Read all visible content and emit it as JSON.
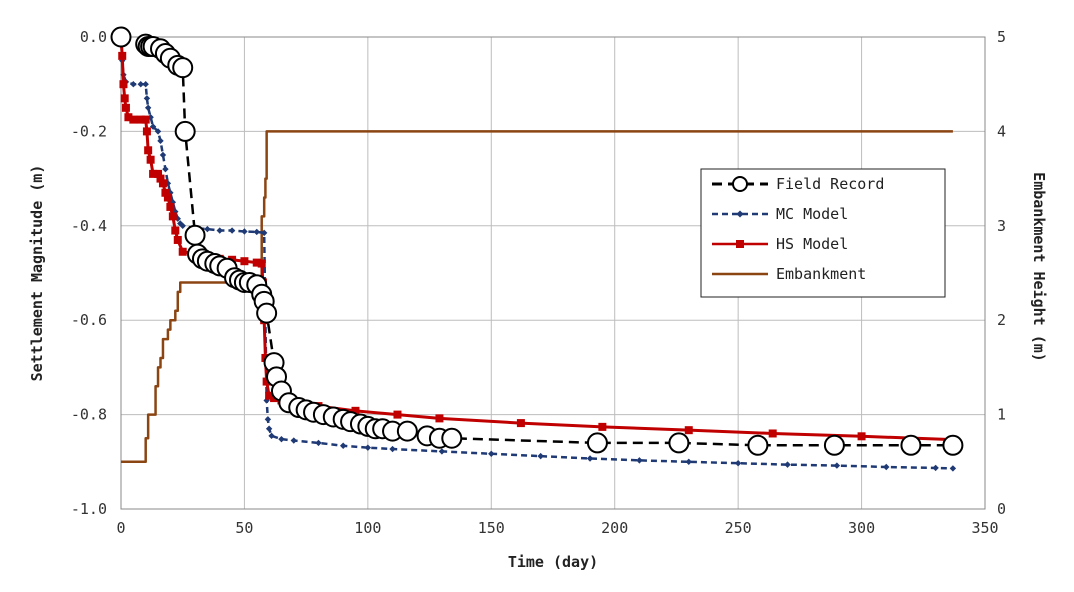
{
  "chart_data": {
    "type": "line",
    "xlabel": "Time (day)",
    "ylabel": "Settlement Magnitude (m)",
    "y2label": "Embankment Height (m)",
    "xlim": [
      0,
      350
    ],
    "ylim": [
      -1.0,
      0.0
    ],
    "y2lim": [
      0,
      5
    ],
    "x_ticks": [
      "0",
      "50",
      "100",
      "150",
      "200",
      "250",
      "300",
      "350"
    ],
    "y_ticks": [
      "0.0",
      "-0.2",
      "-0.4",
      "-0.6",
      "-0.8",
      "-1.0"
    ],
    "y2_ticks": [
      "5",
      "4",
      "3",
      "2",
      "1",
      "0"
    ],
    "grid": true,
    "legend_position": "right",
    "series": [
      {
        "name": "Field Record",
        "axis": "left",
        "color": "#000000",
        "style": "dashed",
        "marker": "open-circle",
        "points": [
          [
            0,
            0.0
          ],
          [
            10,
            -0.015
          ],
          [
            11,
            -0.02
          ],
          [
            12,
            -0.02
          ],
          [
            13,
            -0.02
          ],
          [
            16,
            -0.025
          ],
          [
            18,
            -0.035
          ],
          [
            20,
            -0.045
          ],
          [
            23,
            -0.06
          ],
          [
            25,
            -0.065
          ],
          [
            26,
            -0.2
          ],
          [
            30,
            -0.42
          ],
          [
            31,
            -0.46
          ],
          [
            33,
            -0.47
          ],
          [
            35,
            -0.475
          ],
          [
            38,
            -0.48
          ],
          [
            40,
            -0.485
          ],
          [
            43,
            -0.49
          ],
          [
            46,
            -0.51
          ],
          [
            48,
            -0.515
          ],
          [
            50,
            -0.52
          ],
          [
            52,
            -0.52
          ],
          [
            55,
            -0.525
          ],
          [
            57,
            -0.545
          ],
          [
            58,
            -0.56
          ],
          [
            59,
            -0.585
          ],
          [
            62,
            -0.69
          ],
          [
            63,
            -0.72
          ],
          [
            65,
            -0.75
          ],
          [
            68,
            -0.775
          ],
          [
            72,
            -0.785
          ],
          [
            75,
            -0.79
          ],
          [
            78,
            -0.795
          ],
          [
            82,
            -0.8
          ],
          [
            86,
            -0.805
          ],
          [
            90,
            -0.81
          ],
          [
            93,
            -0.815
          ],
          [
            97,
            -0.82
          ],
          [
            100,
            -0.825
          ],
          [
            103,
            -0.83
          ],
          [
            106,
            -0.83
          ],
          [
            110,
            -0.835
          ],
          [
            116,
            -0.835
          ],
          [
            124,
            -0.845
          ],
          [
            129,
            -0.85
          ],
          [
            134,
            -0.85
          ],
          [
            193,
            -0.86
          ],
          [
            226,
            -0.86
          ],
          [
            258,
            -0.865
          ],
          [
            289,
            -0.865
          ],
          [
            320,
            -0.865
          ],
          [
            337,
            -0.865
          ]
        ]
      },
      {
        "name": "MC Model",
        "axis": "left",
        "color": "#1f3a75",
        "style": "dashed",
        "marker": "small-diamond",
        "points": [
          [
            0,
            0.0
          ],
          [
            0.5,
            -0.05
          ],
          [
            1,
            -0.08
          ],
          [
            2,
            -0.095
          ],
          [
            5,
            -0.1
          ],
          [
            8,
            -0.1
          ],
          [
            10,
            -0.1
          ],
          [
            10.5,
            -0.13
          ],
          [
            11,
            -0.15
          ],
          [
            12,
            -0.17
          ],
          [
            13,
            -0.19
          ],
          [
            15,
            -0.2
          ],
          [
            16,
            -0.22
          ],
          [
            17,
            -0.25
          ],
          [
            18,
            -0.28
          ],
          [
            19,
            -0.31
          ],
          [
            20,
            -0.33
          ],
          [
            21,
            -0.35
          ],
          [
            22,
            -0.37
          ],
          [
            23,
            -0.385
          ],
          [
            24,
            -0.395
          ],
          [
            25,
            -0.4
          ],
          [
            30,
            -0.405
          ],
          [
            35,
            -0.407
          ],
          [
            40,
            -0.41
          ],
          [
            45,
            -0.41
          ],
          [
            50,
            -0.412
          ],
          [
            55,
            -0.413
          ],
          [
            58,
            -0.415
          ],
          [
            58.5,
            -0.6
          ],
          [
            59,
            -0.77
          ],
          [
            59.5,
            -0.81
          ],
          [
            60,
            -0.83
          ],
          [
            61,
            -0.845
          ],
          [
            65,
            -0.852
          ],
          [
            70,
            -0.855
          ],
          [
            80,
            -0.86
          ],
          [
            90,
            -0.866
          ],
          [
            100,
            -0.87
          ],
          [
            110,
            -0.873
          ],
          [
            130,
            -0.878
          ],
          [
            150,
            -0.883
          ],
          [
            170,
            -0.888
          ],
          [
            190,
            -0.893
          ],
          [
            210,
            -0.897
          ],
          [
            230,
            -0.9
          ],
          [
            250,
            -0.903
          ],
          [
            270,
            -0.906
          ],
          [
            290,
            -0.908
          ],
          [
            310,
            -0.911
          ],
          [
            330,
            -0.913
          ],
          [
            337,
            -0.914
          ]
        ]
      },
      {
        "name": "HS Model",
        "axis": "left",
        "color": "#c00000",
        "style": "solid",
        "marker": "square",
        "points": [
          [
            0,
            0.0
          ],
          [
            0.5,
            -0.04
          ],
          [
            1,
            -0.1
          ],
          [
            1.5,
            -0.13
          ],
          [
            2,
            -0.15
          ],
          [
            3,
            -0.17
          ],
          [
            5,
            -0.175
          ],
          [
            8,
            -0.175
          ],
          [
            10,
            -0.175
          ],
          [
            10.5,
            -0.2
          ],
          [
            11,
            -0.24
          ],
          [
            12,
            -0.26
          ],
          [
            13,
            -0.29
          ],
          [
            15,
            -0.29
          ],
          [
            16,
            -0.3
          ],
          [
            17,
            -0.31
          ],
          [
            18,
            -0.33
          ],
          [
            19,
            -0.34
          ],
          [
            20,
            -0.36
          ],
          [
            21,
            -0.38
          ],
          [
            22,
            -0.41
          ],
          [
            23,
            -0.43
          ],
          [
            25,
            -0.455
          ],
          [
            30,
            -0.46
          ],
          [
            35,
            -0.465
          ],
          [
            40,
            -0.47
          ],
          [
            45,
            -0.472
          ],
          [
            50,
            -0.475
          ],
          [
            55,
            -0.478
          ],
          [
            57,
            -0.48
          ],
          [
            57.5,
            -0.52
          ],
          [
            58,
            -0.6
          ],
          [
            58.5,
            -0.68
          ],
          [
            59,
            -0.73
          ],
          [
            60,
            -0.76
          ],
          [
            62,
            -0.765
          ],
          [
            65,
            -0.77
          ],
          [
            70,
            -0.775
          ],
          [
            80,
            -0.782
          ],
          [
            95,
            -0.792
          ],
          [
            112,
            -0.8
          ],
          [
            129,
            -0.808
          ],
          [
            162,
            -0.818
          ],
          [
            195,
            -0.826
          ],
          [
            230,
            -0.833
          ],
          [
            264,
            -0.84
          ],
          [
            300,
            -0.846
          ],
          [
            337,
            -0.853
          ]
        ]
      },
      {
        "name": "Embankment",
        "axis": "right",
        "color": "#8b4513",
        "style": "solid",
        "marker": "none",
        "points": [
          [
            0,
            0.5
          ],
          [
            10,
            0.5
          ],
          [
            10,
            0.75
          ],
          [
            11,
            0.75
          ],
          [
            11,
            1.0
          ],
          [
            14,
            1.0
          ],
          [
            14,
            1.3
          ],
          [
            15,
            1.3
          ],
          [
            15,
            1.5
          ],
          [
            16,
            1.5
          ],
          [
            16,
            1.6
          ],
          [
            17,
            1.6
          ],
          [
            17,
            1.8
          ],
          [
            19,
            1.8
          ],
          [
            19,
            1.9
          ],
          [
            20,
            1.9
          ],
          [
            20,
            2.0
          ],
          [
            22,
            2.0
          ],
          [
            22,
            2.1
          ],
          [
            23,
            2.1
          ],
          [
            23,
            2.3
          ],
          [
            24,
            2.3
          ],
          [
            24,
            2.4
          ],
          [
            25,
            2.4
          ],
          [
            57,
            2.4
          ],
          [
            57,
            3.1
          ],
          [
            58,
            3.1
          ],
          [
            58,
            3.3
          ],
          [
            58.5,
            3.3
          ],
          [
            58.5,
            3.5
          ],
          [
            59,
            3.5
          ],
          [
            59,
            4.0
          ],
          [
            337,
            4.0
          ]
        ]
      }
    ]
  }
}
